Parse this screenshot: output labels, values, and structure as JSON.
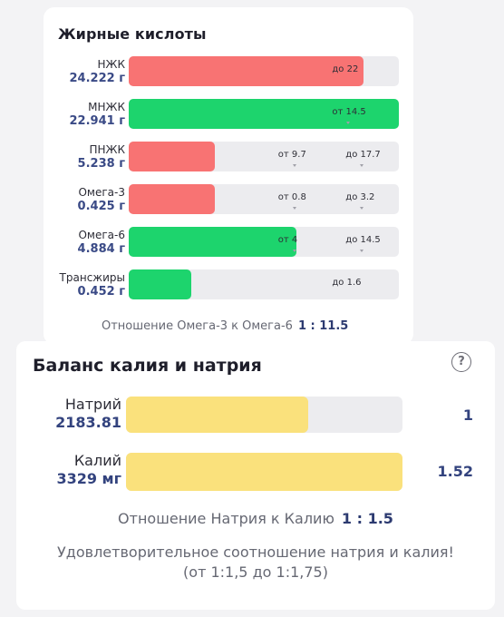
{
  "fatty_acids": {
    "title": "Жирные кислоты",
    "rows": [
      {
        "name": "НЖК",
        "value": "24.222 г",
        "fill_pct": 87,
        "color": "#f87373",
        "marks": [
          {
            "text": "до 22",
            "pos_pct": 80
          }
        ]
      },
      {
        "name": "МНЖК",
        "value": "22.941 г",
        "fill_pct": 100,
        "color": "#1dd46d",
        "marks": [
          {
            "text": "от 14.5",
            "pos_pct": 80
          }
        ]
      },
      {
        "name": "ПНЖК",
        "value": "5.238 г",
        "fill_pct": 32,
        "color": "#f87373",
        "marks": [
          {
            "text": "от 9.7",
            "pos_pct": 60
          },
          {
            "text": "до 17.7",
            "pos_pct": 85
          }
        ]
      },
      {
        "name": "Омега-3",
        "value": "0.425 г",
        "fill_pct": 32,
        "color": "#f87373",
        "marks": [
          {
            "text": "от 0.8",
            "pos_pct": 60
          },
          {
            "text": "до 3.2",
            "pos_pct": 85
          }
        ]
      },
      {
        "name": "Омега-6",
        "value": "4.884 г",
        "fill_pct": 62,
        "color": "#1dd46d",
        "marks": [
          {
            "text": "от 4",
            "pos_pct": 60
          },
          {
            "text": "до 14.5",
            "pos_pct": 85
          }
        ]
      },
      {
        "name": "Трансжиры",
        "value": "0.452 г",
        "fill_pct": 23,
        "color": "#1dd46d",
        "marks": [
          {
            "text": "до 1.6",
            "pos_pct": 80
          }
        ]
      }
    ],
    "ratio_label": "Отношение Омега-3 к Омега-6",
    "ratio_value": "1 : 11.5"
  },
  "balance": {
    "title": "Баланс калия и натрия",
    "help_icon": "?",
    "rows": [
      {
        "name": "Натрий",
        "value": "2183.81",
        "fill_pct": 66,
        "ratio": "1"
      },
      {
        "name": "Калий",
        "value": "3329 мг",
        "fill_pct": 100,
        "ratio": "1.52"
      }
    ],
    "ratio_label": "Отношение Натрия к Калию",
    "ratio_value": "1 : 1.5",
    "note_line1": "Удовлетворительное соотношение натрия и калия!",
    "note_line2": "(от 1:1,5 до 1:1,75)",
    "bar_color": "#fae17c"
  }
}
